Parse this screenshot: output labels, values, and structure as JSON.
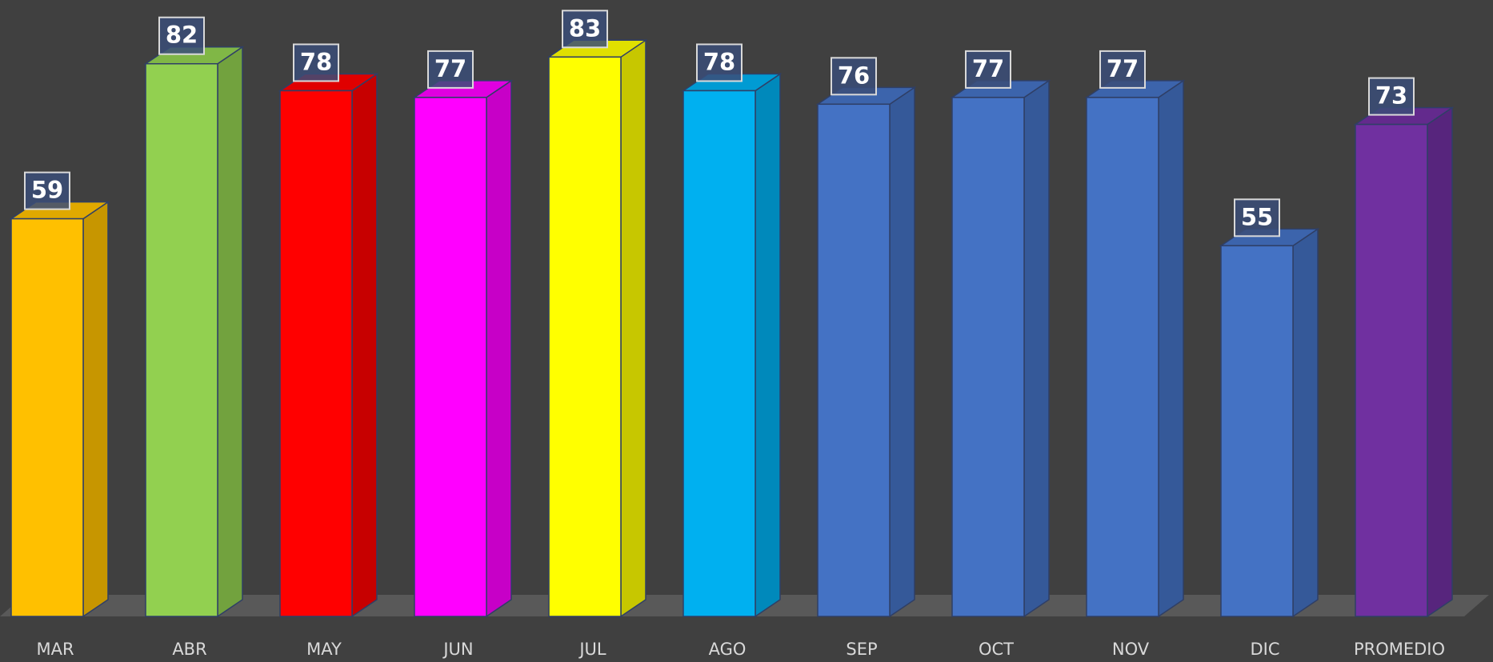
{
  "chart_data": {
    "type": "bar3d",
    "categories": [
      "MAR",
      "ABR",
      "MAY",
      "JUN",
      "JUL",
      "AGO",
      "SEP",
      "OCT",
      "NOV",
      "DIC",
      "PROMEDIO"
    ],
    "values": [
      59,
      82,
      78,
      77,
      83,
      78,
      76,
      77,
      77,
      55,
      73
    ],
    "colors": [
      "#FFC000",
      "#92D050",
      "#FF0000",
      "#FF00FF",
      "#FFFF00",
      "#00B0F0",
      "#4472C4",
      "#4472C4",
      "#4472C4",
      "#4472C4",
      "#7030A0"
    ]
  }
}
